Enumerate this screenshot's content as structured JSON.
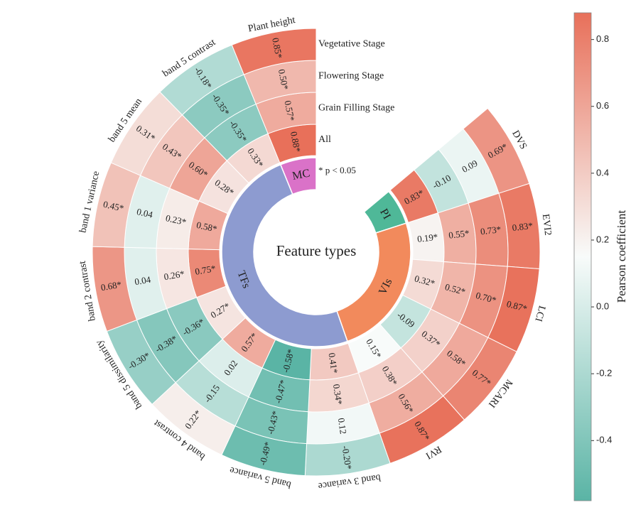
{
  "chart_data": {
    "type": "circular_heatmap",
    "center_title": "Feature types",
    "note": "* p < 0.05",
    "categories": [
      "DVS",
      "EVI2",
      "LCI",
      "MCARI",
      "RVI",
      "band 3 variance",
      "band 5 variance",
      "band 4 contrast",
      "band 5 dissimilarity",
      "band 2 contrast",
      "band 1 variance",
      "band 5 mean",
      "band 5 contrast",
      "Plant height"
    ],
    "groups": [
      {
        "name": "PI",
        "count": 1,
        "color": "#4fb898"
      },
      {
        "name": "VIs",
        "count": 4,
        "color": "#f28a5c"
      },
      {
        "name": "TFs",
        "count": 8,
        "color": "#8d9bd0"
      },
      {
        "name": "MC",
        "count": 1,
        "color": "#da72c8"
      }
    ],
    "series": [
      {
        "name": "All",
        "values": [
          0.83,
          0.19,
          0.32,
          -0.09,
          0.15,
          0.41,
          -0.58,
          0.57,
          0.27,
          0.75,
          0.58,
          0.28,
          0.33,
          0.88
        ],
        "value_labels": [
          "0.83*",
          "0.19*",
          "0.32*",
          "-0.09",
          "0.15*",
          "0.41*",
          "-0.58*",
          "0.57*",
          "0.27*",
          "0.75*",
          "0.58*",
          "0.28*",
          "0.33*",
          "0.88*"
        ]
      },
      {
        "name": "Grain Filling Stage",
        "values": [
          -0.1,
          0.55,
          0.52,
          0.37,
          0.38,
          0.34,
          -0.47,
          0.02,
          -0.36,
          0.26,
          0.23,
          0.6,
          -0.35,
          0.57
        ],
        "value_labels": [
          "-0.10",
          "0.55*",
          "0.52*",
          "0.37*",
          "0.38*",
          "0.34*",
          "-0.47*",
          "0.02",
          "-0.36*",
          "0.26*",
          "0.23*",
          "0.60*",
          "-0.35*",
          "0.57*"
        ]
      },
      {
        "name": "Flowering Stage",
        "values": [
          0.09,
          0.73,
          0.7,
          0.58,
          0.56,
          0.12,
          -0.43,
          -0.15,
          -0.38,
          0.04,
          0.04,
          0.43,
          -0.35,
          0.5
        ],
        "value_labels": [
          "0.09",
          "0.73*",
          "0.70*",
          "0.58*",
          "0.56*",
          "0.12",
          "-0.43*",
          "-0.15",
          "-0.38*",
          "0.04",
          "0.04",
          "0.43*",
          "-0.35*",
          "0.50*"
        ]
      },
      {
        "name": "Vegetative Stage",
        "values": [
          0.69,
          0.83,
          0.87,
          0.77,
          0.87,
          -0.2,
          -0.49,
          0.22,
          -0.3,
          0.68,
          0.45,
          0.31,
          -0.18,
          0.85
        ],
        "value_labels": [
          "0.69*",
          "0.83*",
          "0.87*",
          "0.77*",
          "0.87*",
          "-0.20*",
          "-0.49*",
          "0.22*",
          "-0.30*",
          "0.68*",
          "0.45*",
          "0.31*",
          "-0.18*",
          "0.85*"
        ]
      }
    ],
    "colormap": [
      "#5ab4a5",
      "#f8fbfa",
      "#e8705a"
    ],
    "colorbar_label": "Pearson coefficient",
    "clim": [
      -0.58,
      0.88
    ],
    "cticks": [
      -0.4,
      -0.2,
      {
        "value": 0,
        "label": "0.0"
      },
      0.2,
      0.4,
      0.6,
      0.8
    ]
  }
}
